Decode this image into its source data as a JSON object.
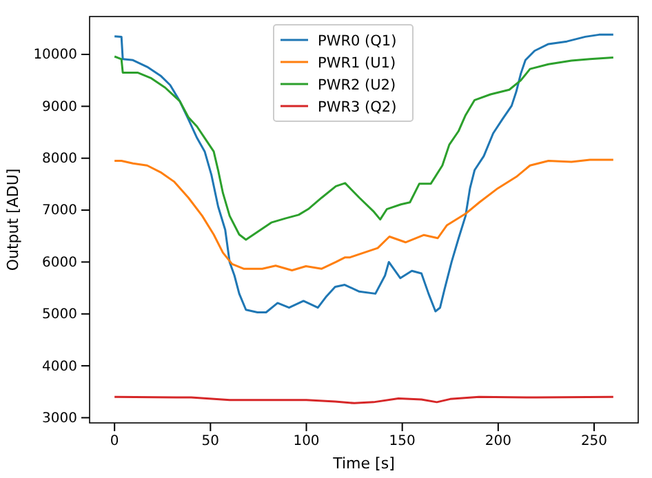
{
  "chart_data": {
    "type": "line",
    "xlabel": "Time [s]",
    "ylabel": "Output [ADU]",
    "xlim": [
      -13,
      273
    ],
    "xticks": [
      0,
      50,
      100,
      150,
      200,
      250
    ],
    "ylim": [
      2900,
      10730
    ],
    "yticks": [
      3000,
      4000,
      5000,
      6000,
      7000,
      8000,
      9000,
      10000
    ],
    "legend": "top",
    "grid": false,
    "series": [
      {
        "name": "PWR0 (Q1)",
        "color": "#1f77b4",
        "x": [
          0,
          3.6,
          4.3,
          9.6,
          17,
          24,
          29,
          34,
          38.5,
          43,
          47,
          50.5,
          54,
          57.7,
          60,
          62.5,
          65,
          68.5,
          74.5,
          79,
          85,
          91,
          98.5,
          106,
          110.5,
          115,
          120,
          127.6,
          136,
          141,
          143,
          149,
          155,
          160,
          163.7,
          167.3,
          169.7,
          172,
          175.7,
          179.3,
          183,
          185.3,
          187.7,
          192.5,
          197.4,
          202.2,
          207,
          209.4,
          211.8,
          214.2,
          219,
          226.2,
          235.8,
          245.4,
          252.6,
          260
        ],
        "values": [
          10350,
          10340,
          9910,
          9890,
          9760,
          9590,
          9410,
          9100,
          8750,
          8390,
          8130,
          7680,
          7070,
          6620,
          6000,
          5740,
          5390,
          5080,
          5030,
          5030,
          5210,
          5120,
          5250,
          5120,
          5340,
          5520,
          5560,
          5430,
          5390,
          5740,
          6000,
          5690,
          5830,
          5780,
          5390,
          5050,
          5120,
          5470,
          6000,
          6450,
          6890,
          7420,
          7770,
          8040,
          8480,
          8750,
          9010,
          9280,
          9630,
          9890,
          10070,
          10200,
          10250,
          10340,
          10380,
          10380
        ]
      },
      {
        "name": "PWR1 (U1)",
        "color": "#ff7f0e",
        "x": [
          0,
          3.6,
          9.6,
          17,
          24,
          31,
          38.5,
          45.7,
          51.7,
          56.5,
          61.3,
          67.3,
          77,
          84,
          92.5,
          99.8,
          108,
          115.4,
          120.2,
          122.8,
          137.2,
          143.3,
          151.7,
          161.3,
          168.5,
          173.3,
          183,
          190.2,
          199.8,
          209.4,
          216.6,
          226.2,
          238.2,
          247.8,
          260
        ],
        "values": [
          7950,
          7950,
          7900,
          7860,
          7730,
          7550,
          7240,
          6890,
          6530,
          6180,
          5960,
          5870,
          5870,
          5930,
          5840,
          5920,
          5870,
          6000,
          6090,
          6090,
          6270,
          6490,
          6380,
          6520,
          6460,
          6710,
          6930,
          7150,
          7420,
          7640,
          7860,
          7950,
          7930,
          7970,
          7970
        ]
      },
      {
        "name": "PWR2 (U2)",
        "color": "#2ca02c",
        "x": [
          0,
          3.6,
          4.3,
          12,
          19.2,
          26.4,
          34,
          38.5,
          43,
          47,
          51.7,
          54,
          56.5,
          60,
          65,
          68.5,
          74.5,
          81.7,
          89,
          96,
          101,
          108,
          115.4,
          120.2,
          127.6,
          134.9,
          138.5,
          142,
          149.3,
          154,
          158.9,
          164.9,
          170.9,
          174.5,
          179.3,
          183,
          187.7,
          196,
          205.8,
          211.8,
          216.6,
          226.2,
          238.2,
          247.8,
          260
        ],
        "values": [
          9960,
          9910,
          9650,
          9650,
          9540,
          9360,
          9100,
          8790,
          8610,
          8390,
          8130,
          7770,
          7330,
          6890,
          6530,
          6430,
          6580,
          6760,
          6840,
          6910,
          7020,
          7240,
          7460,
          7520,
          7240,
          6980,
          6820,
          7020,
          7110,
          7150,
          7510,
          7510,
          7860,
          8260,
          8520,
          8830,
          9120,
          9230,
          9320,
          9500,
          9720,
          9810,
          9880,
          9910,
          9940
        ]
      },
      {
        "name": "PWR3 (Q2)",
        "color": "#d62728",
        "x": [
          0,
          40,
          60,
          100,
          115,
          125,
          135,
          148,
          160,
          168,
          175,
          190,
          220,
          260
        ],
        "values": [
          3400,
          3390,
          3340,
          3340,
          3310,
          3280,
          3300,
          3370,
          3350,
          3300,
          3360,
          3400,
          3390,
          3400
        ]
      }
    ]
  }
}
